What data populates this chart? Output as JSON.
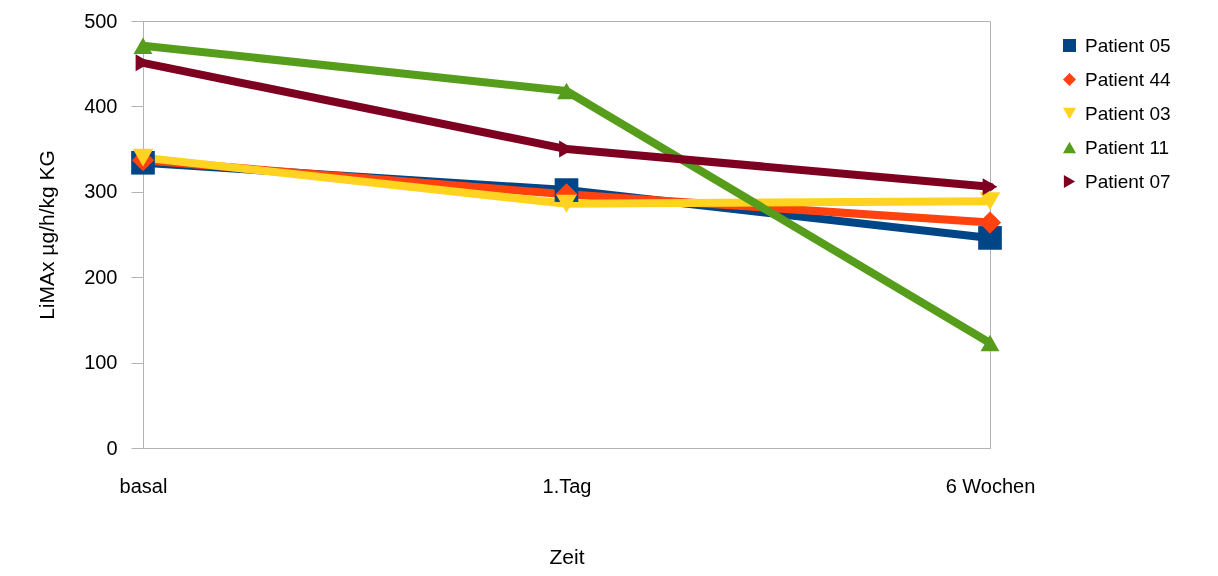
{
  "chart_data": {
    "type": "line",
    "xlabel": "Zeit",
    "ylabel": "LiMAx µg/h/kg KG",
    "categories": [
      "basal",
      "1.Tag",
      "6 Wochen"
    ],
    "ylim": [
      0,
      500
    ],
    "yticks": [
      0,
      100,
      200,
      300,
      400,
      500
    ],
    "grid": false,
    "legend": "top right",
    "series": [
      {
        "name": "Patient 05",
        "color": "#004586",
        "marker": "square",
        "values": [
          334,
          302,
          246
        ]
      },
      {
        "name": "Patient 44",
        "color": "#ff420e",
        "marker": "diamond",
        "values": [
          337,
          297,
          264
        ]
      },
      {
        "name": "Patient 03",
        "color": "#ffd320",
        "marker": "triangle-down",
        "values": [
          340,
          286,
          289
        ]
      },
      {
        "name": "Patient 11",
        "color": "#579d1c",
        "marker": "triangle",
        "values": [
          471,
          418,
          123
        ]
      },
      {
        "name": "Patient 07",
        "color": "#7e0021",
        "marker": "triangle-right",
        "values": [
          451,
          350,
          306
        ]
      }
    ]
  }
}
